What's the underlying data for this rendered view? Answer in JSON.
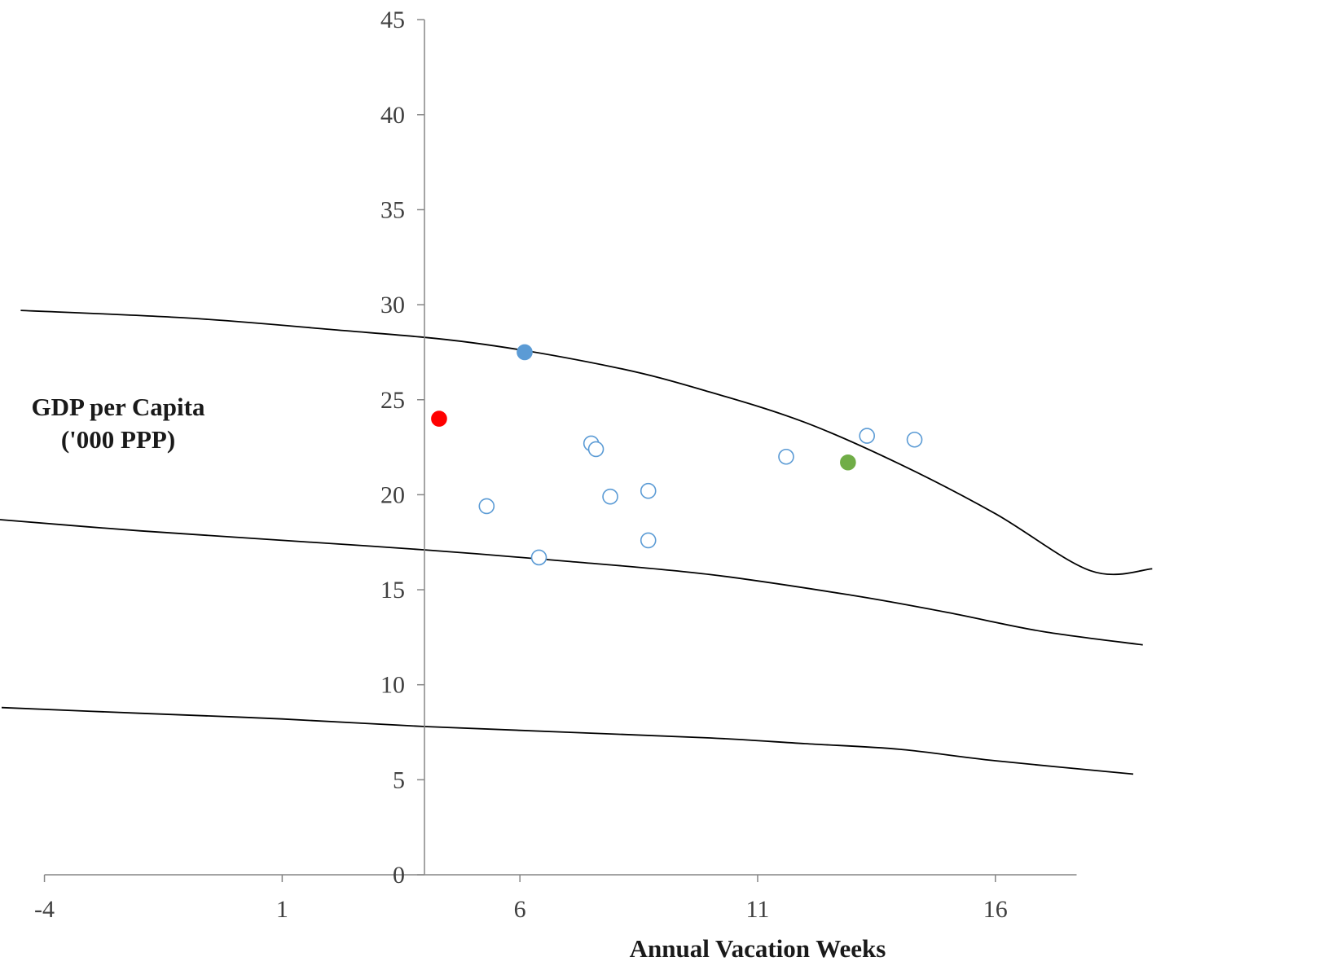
{
  "chart_data": {
    "type": "scatter",
    "xlabel": "Annual Vacation Weeks",
    "ylabel_lines": [
      "GDP per Capita",
      "('000 PPP)"
    ],
    "xlim": [
      -4,
      18
    ],
    "ylim": [
      0,
      45
    ],
    "xticks": [
      -4,
      1,
      6,
      11,
      16
    ],
    "yticks": [
      0,
      5,
      10,
      15,
      20,
      25,
      30,
      35,
      40,
      45
    ],
    "grid": false,
    "points": [
      {
        "x": 6.1,
        "y": 27.5,
        "style": "filled",
        "color": "#5b9bd5"
      },
      {
        "x": 4.3,
        "y": 24.0,
        "style": "filled",
        "color": "#ff0000"
      },
      {
        "x": 12.9,
        "y": 21.7,
        "style": "filled",
        "color": "#70ad47"
      },
      {
        "x": 7.5,
        "y": 22.7,
        "style": "open",
        "color": "#5b9bd5"
      },
      {
        "x": 7.6,
        "y": 22.4,
        "style": "open",
        "color": "#5b9bd5"
      },
      {
        "x": 5.3,
        "y": 19.4,
        "style": "open",
        "color": "#5b9bd5"
      },
      {
        "x": 6.4,
        "y": 16.7,
        "style": "open",
        "color": "#5b9bd5"
      },
      {
        "x": 7.9,
        "y": 19.9,
        "style": "open",
        "color": "#5b9bd5"
      },
      {
        "x": 8.7,
        "y": 20.2,
        "style": "open",
        "color": "#5b9bd5"
      },
      {
        "x": 8.7,
        "y": 17.6,
        "style": "open",
        "color": "#5b9bd5"
      },
      {
        "x": 11.6,
        "y": 22.0,
        "style": "open",
        "color": "#5b9bd5"
      },
      {
        "x": 13.3,
        "y": 23.1,
        "style": "open",
        "color": "#5b9bd5"
      },
      {
        "x": 14.3,
        "y": 22.9,
        "style": "open",
        "color": "#5b9bd5"
      }
    ],
    "curves": [
      {
        "color": "#000000",
        "points": [
          [
            -4.5,
            29.7
          ],
          [
            -1,
            29.3
          ],
          [
            2,
            28.7
          ],
          [
            5,
            28.0
          ],
          [
            8,
            26.7
          ],
          [
            10,
            25.4
          ],
          [
            12,
            23.8
          ],
          [
            14,
            21.6
          ],
          [
            16,
            19.0
          ],
          [
            18,
            16.0
          ],
          [
            19.3,
            16.1
          ]
        ]
      },
      {
        "color": "#000000",
        "points": [
          [
            -5.0,
            18.7
          ],
          [
            -2,
            18.1
          ],
          [
            1,
            17.6
          ],
          [
            4,
            17.1
          ],
          [
            7,
            16.5
          ],
          [
            10,
            15.8
          ],
          [
            13,
            14.7
          ],
          [
            15,
            13.8
          ],
          [
            17,
            12.8
          ],
          [
            19.1,
            12.1
          ]
        ]
      },
      {
        "color": "#000000",
        "points": [
          [
            -4.9,
            8.8
          ],
          [
            -2,
            8.5
          ],
          [
            1,
            8.2
          ],
          [
            4,
            7.8
          ],
          [
            7,
            7.5
          ],
          [
            10,
            7.2
          ],
          [
            12,
            6.9
          ],
          [
            14,
            6.6
          ],
          [
            16,
            6.0
          ],
          [
            18.9,
            5.3
          ]
        ]
      }
    ]
  }
}
